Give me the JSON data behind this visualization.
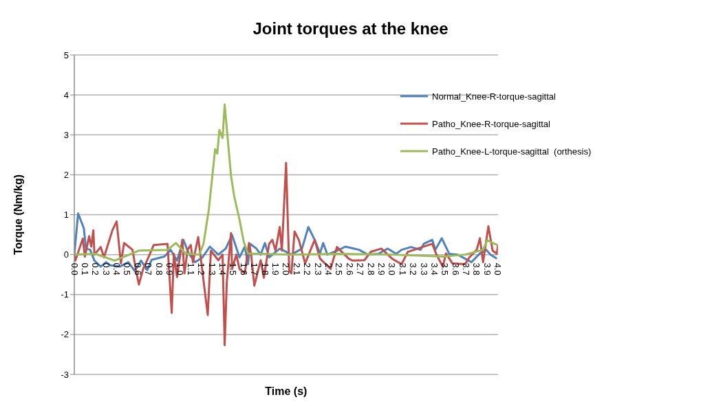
{
  "chart_data": {
    "type": "line",
    "title": "Joint torques at the knee",
    "xlabel": "Time (s)",
    "ylabel": "Torque (Nm/kg)",
    "xlim": [
      0,
      4
    ],
    "xticks": [
      {
        "value": 0,
        "label": "0.0"
      },
      {
        "value": 0.1,
        "label": "0.1"
      },
      {
        "value": 0.2,
        "label": "0.2"
      },
      {
        "value": 0.3,
        "label": "0.3"
      },
      {
        "value": 0.4,
        "label": "0.4"
      },
      {
        "value": 0.5,
        "label": "0.5"
      },
      {
        "value": 0.6,
        "label": "0.6"
      },
      {
        "value": 0.7,
        "label": "0.7"
      },
      {
        "value": 0.8,
        "label": "0.8"
      },
      {
        "value": 0.9,
        "label": "0.9"
      },
      {
        "value": 1,
        "label": "1.0"
      },
      {
        "value": 1.1,
        "label": "1.1"
      },
      {
        "value": 1.2,
        "label": "1.2"
      },
      {
        "value": 1.3,
        "label": "1.3"
      },
      {
        "value": 1.4,
        "label": "1.4"
      },
      {
        "value": 1.5,
        "label": "1.5"
      },
      {
        "value": 1.6,
        "label": "1.6"
      },
      {
        "value": 1.7,
        "label": "1.7"
      },
      {
        "value": 1.8,
        "label": "1.8"
      },
      {
        "value": 1.9,
        "label": "1.9"
      },
      {
        "value": 2,
        "label": "2.0"
      },
      {
        "value": 2.1,
        "label": "2.1"
      },
      {
        "value": 2.2,
        "label": "2.2"
      },
      {
        "value": 2.3,
        "label": "2.3"
      },
      {
        "value": 2.4,
        "label": "2.4"
      },
      {
        "value": 2.5,
        "label": "2.5"
      },
      {
        "value": 2.6,
        "label": "2.6"
      },
      {
        "value": 2.7,
        "label": "2.7"
      },
      {
        "value": 2.8,
        "label": "2.8"
      },
      {
        "value": 2.9,
        "label": "2.9"
      },
      {
        "value": 3,
        "label": "3.0"
      },
      {
        "value": 3.1,
        "label": "3.1"
      },
      {
        "value": 3.2,
        "label": "3.2"
      },
      {
        "value": 3.3,
        "label": "3.3"
      },
      {
        "value": 3.4,
        "label": "3.4"
      },
      {
        "value": 3.5,
        "label": "3.5"
      },
      {
        "value": 3.6,
        "label": "3.6"
      },
      {
        "value": 3.7,
        "label": "3.7"
      },
      {
        "value": 3.8,
        "label": "3.8"
      },
      {
        "value": 3.9,
        "label": "3.9"
      },
      {
        "value": 4,
        "label": "4.0"
      }
    ],
    "ylim": [
      -3,
      5
    ],
    "yticks": [
      -3,
      -2,
      -1,
      0,
      1,
      2,
      3,
      4,
      5
    ],
    "grid": "y",
    "legend": "top right",
    "marker": "none",
    "line_style": "solid",
    "series": [
      {
        "name": "Normal_Knee-R-torque-sagittal",
        "color": "#4f81bd",
        "x": [
          0,
          0.036,
          0.09,
          0.11,
          0.15,
          0.19,
          0.25,
          0.3,
          0.34,
          0.43,
          0.51,
          0.57,
          0.63,
          0.69,
          0.73,
          0.85,
          0.91,
          0.97,
          1.03,
          1.08,
          1.14,
          1.21,
          1.28,
          1.36,
          1.43,
          1.49,
          1.56,
          1.61,
          1.64,
          1.66,
          1.72,
          1.76,
          1.8,
          1.84,
          1.94,
          2.05,
          2.15,
          2.21,
          2.27,
          2.32,
          2.35,
          2.39,
          2.5,
          2.56,
          2.69,
          2.77,
          2.87,
          2.96,
          3.04,
          3.09,
          3.18,
          3.27,
          3.3,
          3.38,
          3.41,
          3.47,
          3.54,
          3.62,
          3.75,
          3.83,
          3.89,
          3.93,
          3.99
        ],
        "values": [
          0,
          1.03,
          0.66,
          0.15,
          0.12,
          -0.15,
          -0.3,
          -0.19,
          -0.27,
          -0.3,
          -0.19,
          -0.41,
          -0.15,
          -0.39,
          -0.13,
          -0.05,
          0.12,
          -0.15,
          0.37,
          0.03,
          -0.19,
          -0.07,
          0.2,
          0,
          0.15,
          0.49,
          -0.07,
          0.2,
          -0.24,
          0.27,
          0.15,
          0,
          0.29,
          -0.07,
          0.15,
          0,
          0.15,
          0.69,
          0.37,
          0.03,
          0.29,
          0,
          0.12,
          0.2,
          0.12,
          0,
          0.02,
          0.15,
          0.02,
          0.12,
          0.19,
          0.12,
          0.27,
          0.37,
          0.12,
          0.41,
          0.02,
          0,
          -0.19,
          0.03,
          0.12,
          0,
          -0.1
        ]
      },
      {
        "name": "Patho_Knee-R-torque-sagittal",
        "color": "#c0504d",
        "x": [
          0,
          0.01,
          0.08,
          0.1,
          0.14,
          0.16,
          0.18,
          0.19,
          0.25,
          0.28,
          0.36,
          0.4,
          0.44,
          0.47,
          0.55,
          0.58,
          0.61,
          0.65,
          0.7,
          0.75,
          0.88,
          0.92,
          0.94,
          0.97,
          1.02,
          1.04,
          1.07,
          1.1,
          1.12,
          1.17,
          1.26,
          1.29,
          1.36,
          1.4,
          1.42,
          1.44,
          1.48,
          1.49,
          1.53,
          1.56,
          1.61,
          1.65,
          1.67,
          1.7,
          1.76,
          1.79,
          1.84,
          1.87,
          1.9,
          1.94,
          1.96,
          2,
          2.03,
          2.05,
          2.08,
          2.12,
          2.18,
          2.27,
          2.32,
          2.42,
          2.48,
          2.59,
          2.63,
          2.74,
          2.8,
          2.9,
          3,
          3.09,
          3.15,
          3.38,
          3.42,
          3.48,
          3.51,
          3.57,
          3.69,
          3.73,
          3.8,
          3.83,
          3.86,
          3.91,
          3.95,
          3.99,
          4
        ],
        "values": [
          -0.02,
          -0.15,
          0.4,
          -0.05,
          0.46,
          0.2,
          0.61,
          0,
          0.19,
          -0.07,
          0.61,
          0.83,
          -0.22,
          0.29,
          0.12,
          -0.36,
          -0.75,
          -0.36,
          -0.07,
          0.24,
          0.27,
          -1.46,
          0.02,
          -0.56,
          0.37,
          -0.47,
          0.12,
          0.24,
          -0.19,
          0.44,
          -1.51,
          0.1,
          -0.14,
          0,
          -2.27,
          -0.69,
          0.54,
          -0.36,
          0,
          -0.36,
          -0.47,
          0.29,
          0,
          -0.78,
          -0.14,
          -0.58,
          0.27,
          0.37,
          0.1,
          0.69,
          0.1,
          2.3,
          -0.41,
          -0.47,
          0.58,
          0.37,
          -0.22,
          0.37,
          -0.1,
          -0.36,
          0.19,
          -0.1,
          -0.15,
          -0.14,
          0.07,
          0.15,
          -0.1,
          -0.24,
          0.07,
          0.27,
          0,
          -0.3,
          0.03,
          -0.22,
          -0.24,
          -0.07,
          0.12,
          0.41,
          -0.19,
          0.71,
          0.1,
          0.02,
          0.24
        ]
      },
      {
        "name": "Patho_Knee-L-torque-sagittal  (orthesis)",
        "color": "#9bbb59",
        "x": [
          0,
          0.2,
          0.38,
          0.61,
          0.88,
          0.96,
          1.05,
          1.18,
          1.22,
          1.27,
          1.33,
          1.35,
          1.37,
          1.4,
          1.42,
          1.48,
          1.51,
          1.56,
          1.6,
          1.64,
          2.05,
          2.5,
          3,
          3.48,
          3.69,
          3.86,
          3.9,
          3.95,
          4
        ],
        "values": [
          0,
          0.02,
          -0.15,
          0.1,
          0.12,
          0.29,
          0.03,
          0,
          0.27,
          1.12,
          2.64,
          2.53,
          3.12,
          2.92,
          3.76,
          1.97,
          1.46,
          0.88,
          0.32,
          0.03,
          0,
          0.02,
          0,
          -0.05,
          0,
          0.12,
          0.36,
          0.29,
          0.24
        ]
      }
    ]
  }
}
